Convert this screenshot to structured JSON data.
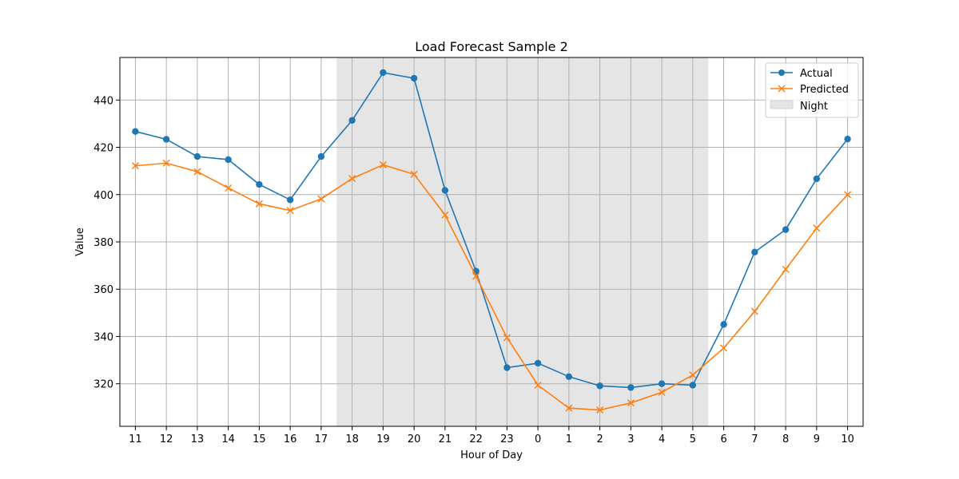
{
  "chart_data": {
    "type": "line",
    "title": "Load Forecast Sample 2",
    "xlabel": "Hour of Day",
    "ylabel": "Value",
    "x": [
      "11",
      "12",
      "13",
      "14",
      "15",
      "16",
      "17",
      "18",
      "19",
      "20",
      "21",
      "22",
      "23",
      "0",
      "1",
      "2",
      "3",
      "4",
      "5",
      "6",
      "7",
      "8",
      "9",
      "10"
    ],
    "ylim": [
      302,
      458
    ],
    "yticks": [
      320,
      340,
      360,
      380,
      400,
      420,
      440
    ],
    "grid": true,
    "legend_position": "top-right",
    "series": [
      {
        "name": "Actual",
        "color": "#1f77b4",
        "marker": "circle",
        "values": [
          426.7,
          423.4,
          416.1,
          414.8,
          404.3,
          397.8,
          416.1,
          431.4,
          451.6,
          449.2,
          401.8,
          367.6,
          326.8,
          328.7,
          323.0,
          319.1,
          318.4,
          320.0,
          319.4,
          345.1,
          375.7,
          385.2,
          406.7,
          423.5
        ]
      },
      {
        "name": "Predicted",
        "color": "#ff7f0e",
        "marker": "x",
        "values": [
          412.2,
          413.3,
          409.7,
          402.8,
          396.1,
          393.3,
          398.2,
          406.8,
          412.6,
          408.6,
          391.4,
          365.5,
          339.5,
          319.4,
          309.7,
          308.9,
          311.9,
          316.4,
          323.7,
          335.1,
          350.6,
          368.4,
          385.8,
          400.0
        ]
      }
    ],
    "shaded_region": {
      "name": "Night",
      "color": "#e5e5e5",
      "from_hour": "18",
      "to_hour": "5"
    }
  }
}
